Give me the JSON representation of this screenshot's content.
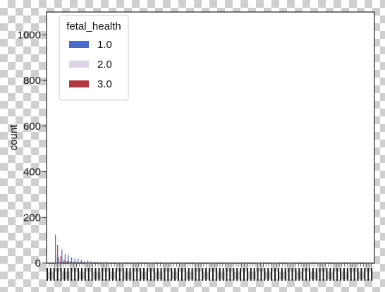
{
  "chart_data": {
    "type": "bar",
    "title": "",
    "xlabel": "",
    "ylabel": "count",
    "ylim": [
      0,
      1100
    ],
    "yticks": [
      0,
      200,
      400,
      600,
      800,
      1000
    ],
    "grid": false,
    "legend": {
      "title": "fetal_health",
      "placement": "top-left",
      "entries": [
        "1.0",
        "2.0",
        "3.0"
      ]
    },
    "series": [
      {
        "name": "1.0",
        "color": "#4a6bc9",
        "values": [
          125,
          25,
          60,
          40,
          35,
          25,
          20,
          20,
          15,
          10,
          12,
          8,
          6,
          5,
          4,
          3,
          3,
          2,
          2,
          2,
          1,
          1,
          1,
          1,
          1,
          1,
          1,
          1,
          1,
          1,
          1,
          1
        ]
      },
      {
        "name": "2.0",
        "color": "#ddd3e6",
        "values": [
          35,
          12,
          10,
          8,
          6,
          5,
          4,
          3,
          3,
          2,
          2,
          2,
          1,
          1,
          1,
          1,
          1,
          1,
          1,
          0,
          0,
          0,
          0,
          0,
          0,
          0,
          0,
          0,
          0,
          0,
          0,
          0
        ]
      },
      {
        "name": "3.0",
        "color": "#b33a40",
        "values": [
          80,
          30,
          15,
          10,
          8,
          6,
          5,
          4,
          3,
          2,
          2,
          2,
          1,
          1,
          1,
          1,
          1,
          0,
          0,
          0,
          0,
          0,
          0,
          0,
          0,
          0,
          0,
          0,
          0,
          0,
          0,
          0
        ]
      }
    ]
  }
}
